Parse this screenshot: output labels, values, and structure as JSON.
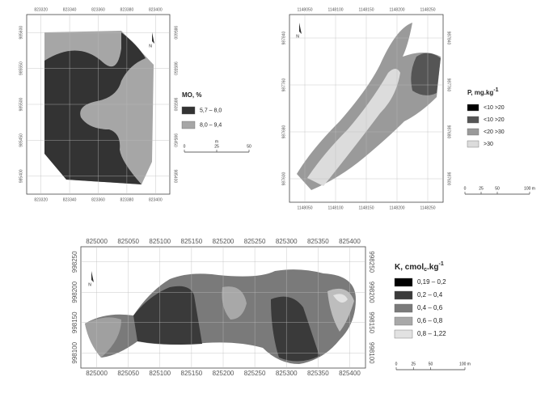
{
  "maps": [
    {
      "x_labels": [
        "823320",
        "823340",
        "823360",
        "823380",
        "823400"
      ],
      "y_labels": [
        "985600",
        "985550",
        "985500",
        "985450",
        "985400"
      ],
      "legend_title": "MO, %",
      "legend_items": [
        "5,7 – 8,0",
        "8,0 – 9,4"
      ],
      "scale_unit": "m",
      "scale_labels": [
        "0",
        "25",
        "50"
      ],
      "north": "N"
    },
    {
      "x_labels": [
        "1148050",
        "1148100",
        "1148150",
        "1148200",
        "1148250"
      ],
      "y_labels": [
        "987840",
        "987760",
        "987680",
        "987600"
      ],
      "legend_title": "P, mg.kg",
      "legend_title_sup": "-1",
      "legend_items": [
        "<10  >20",
        "<10  >20",
        "<20  >30",
        ">30"
      ],
      "scale_labels": [
        "0",
        "25",
        "50",
        "100 m"
      ],
      "north": "N"
    },
    {
      "x_labels": [
        "825000",
        "825050",
        "825100",
        "825150",
        "825200",
        "825250",
        "825300",
        "825350",
        "825400"
      ],
      "y_labels": [
        "998250",
        "998200",
        "998150",
        "998100"
      ],
      "legend_title": "K, cmol",
      "legend_title_sub": "c",
      "legend_title_mid": ".kg",
      "legend_title_sup": "-1",
      "legend_items": [
        "0,19 – 0,2",
        "0,2 – 0,4",
        "0,4 – 0,6",
        "0,6 – 0,8",
        "0,8 – 1,22"
      ],
      "scale_labels": [
        "0",
        "25",
        "50",
        "100 m"
      ],
      "north": "N"
    }
  ]
}
